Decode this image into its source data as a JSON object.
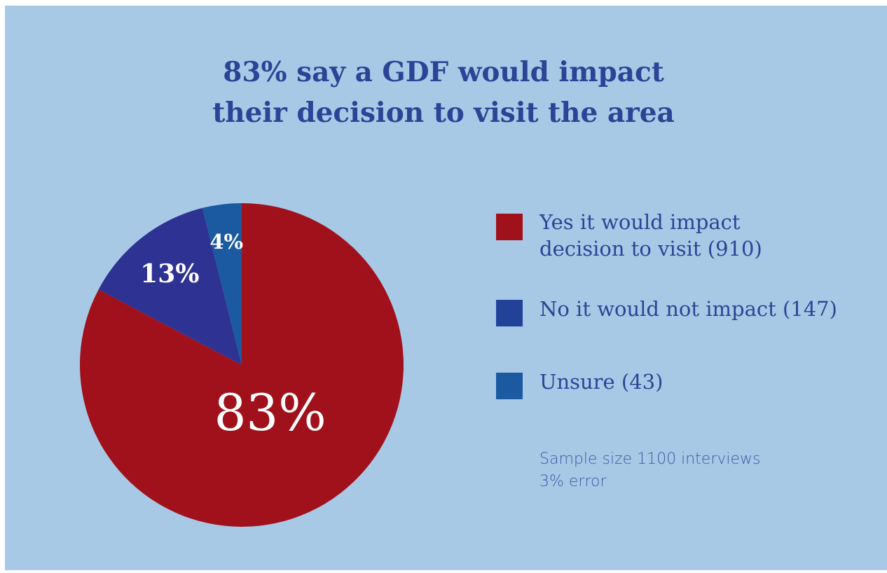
{
  "title": {
    "highlight": "83%",
    "line1_rest": " say a GDF would impact",
    "line2": "their decision to visit the area"
  },
  "chart_data": {
    "type": "pie",
    "title": "83% say a GDF would impact their decision to visit the area",
    "slices": [
      {
        "label": "Yes it would impact decision to visit",
        "count": 910,
        "percent_label": "83%",
        "color": "#a0111b"
      },
      {
        "label": "No it would not impact",
        "count": 147,
        "percent_label": "13%",
        "color": "#2e3292"
      },
      {
        "label": "Unsure",
        "count": 43,
        "percent_label": "4%",
        "color": "#1b5aa0"
      }
    ],
    "legend_position": "right"
  },
  "legend": [
    {
      "line1": "Yes it would impact",
      "line2": "decision to visit (910)",
      "color": "#a0111b"
    },
    {
      "line1": "No it would not impact (147)",
      "line2": "",
      "color": "#22429a"
    },
    {
      "line1": "Unsure (43)",
      "line2": "",
      "color": "#1b5aa0"
    }
  ],
  "note": {
    "line1": "Sample size 1100 interviews",
    "line2": "3% error"
  },
  "colors": {
    "background": "#a8c9e5",
    "title_text": "#2a4596",
    "slice_label_text": "#ffffff"
  }
}
